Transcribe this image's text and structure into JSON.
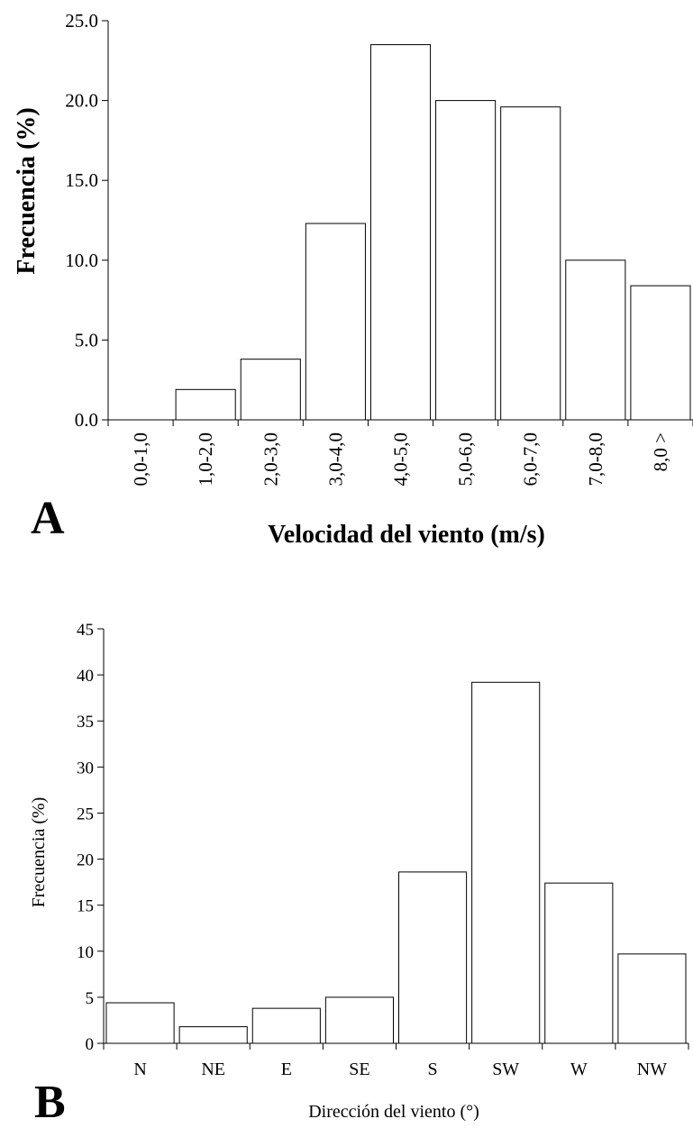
{
  "chart_data": [
    {
      "type": "bar",
      "panel": "A",
      "categories": [
        "0,0-1,0",
        "1,0-2,0",
        "2,0-3,0",
        "3,0-4,0",
        "4,0-5,0",
        "5,0-6,0",
        "6,0-7,0",
        "7,0-8,0",
        "8,0 >"
      ],
      "values": [
        0.0,
        1.9,
        3.8,
        12.3,
        23.5,
        20.0,
        19.6,
        10.0,
        8.4
      ],
      "yticks": [
        "0.0",
        "5.0",
        "10.0",
        "15.0",
        "20.0",
        "25.0"
      ],
      "ylim": [
        0,
        25
      ],
      "xlabel": "Velocidad del viento (m/s)",
      "ylabel": "Frecuencia (%)",
      "grid": false
    },
    {
      "type": "bar",
      "panel": "B",
      "categories": [
        "N",
        "NE",
        "E",
        "SE",
        "S",
        "SW",
        "W",
        "NW"
      ],
      "values": [
        4.4,
        1.8,
        3.8,
        5.0,
        18.6,
        39.2,
        17.4,
        9.7
      ],
      "yticks": [
        "0",
        "5",
        "10",
        "15",
        "20",
        "25",
        "30",
        "35",
        "40",
        "45"
      ],
      "ylim": [
        0,
        45
      ],
      "xlabel": "Dirección del viento (°)",
      "ylabel": "Frecuencia (%)",
      "grid": false
    }
  ]
}
